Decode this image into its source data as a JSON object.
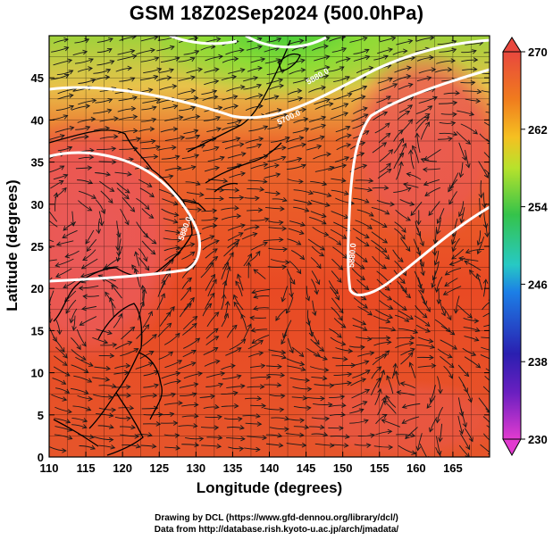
{
  "title": "GSM 18Z02Sep2024 (500.0hPa)",
  "axes": {
    "xlabel": "Longitude (degrees)",
    "ylabel": "Latitude  (degrees)",
    "x_ticks": [
      "110",
      "115",
      "120",
      "125",
      "130",
      "135",
      "140",
      "145",
      "150",
      "155",
      "160",
      "165"
    ],
    "y_ticks": [
      "0",
      "5",
      "10",
      "15",
      "20",
      "25",
      "30",
      "35",
      "40",
      "45"
    ],
    "x_range": [
      110,
      170
    ],
    "y_range": [
      0,
      50
    ]
  },
  "colorbar": {
    "labels": [
      "270",
      "262",
      "254",
      "246",
      "238",
      "230"
    ],
    "range": [
      230,
      270
    ],
    "colors": [
      "#e23bd0",
      "#2a1fb0",
      "#1c7fe6",
      "#27c9c4",
      "#35c34a",
      "#b7e22c",
      "#f5a521",
      "#ea3e1e",
      "#e8483e"
    ]
  },
  "contour_labels": [
    "5880.0",
    "5700.0",
    "5880.0",
    "5880.0"
  ],
  "credits": {
    "line1": "Drawing by DCL (https://www.gfd-dennou.org/library/dcl/)",
    "line2": "Data from http://database.rish.kyoto-u.ac.jp/arch/jmadata/"
  }
}
